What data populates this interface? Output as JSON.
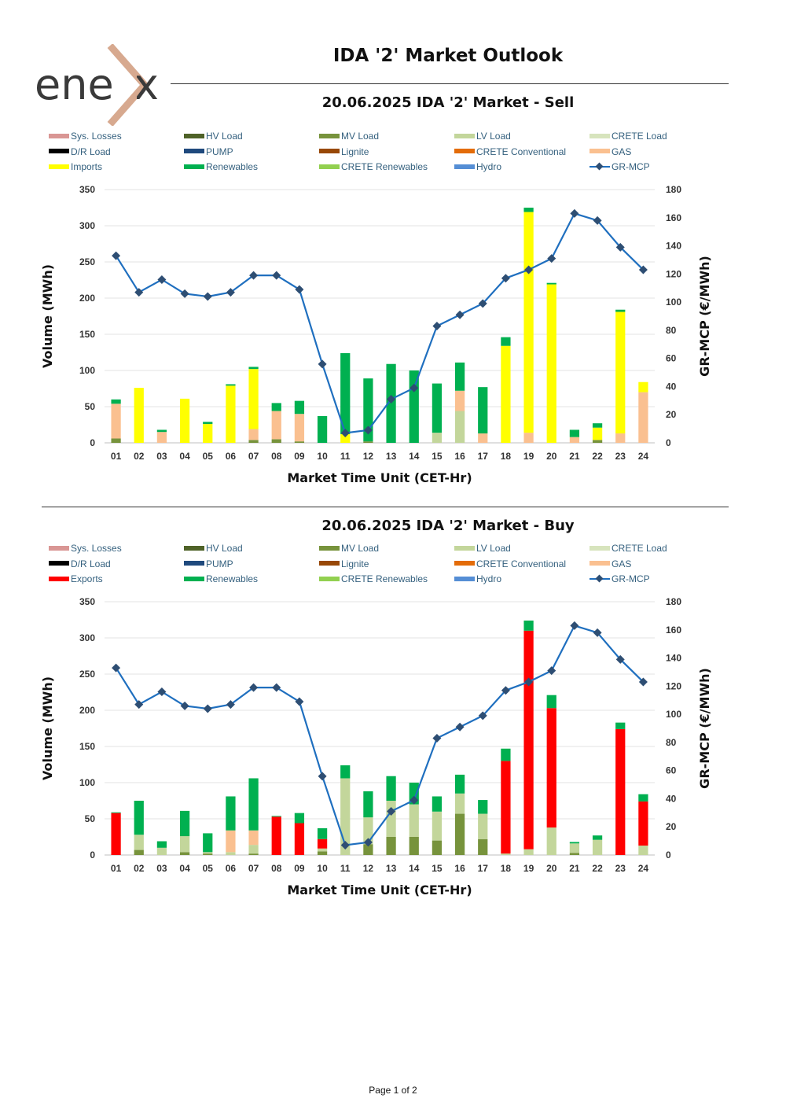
{
  "logo": {
    "text": "ene",
    "accent_color": "#d7a98f",
    "text_color": "#3a3a3a"
  },
  "page_title": "IDA '2' Market Outlook",
  "footer": "Page 1 of 2",
  "colors": {
    "Sys. Losses": "#d99694",
    "HV Load": "#4f6228",
    "MV Load": "#77933c",
    "LV Load": "#c3d69b",
    "CRETE Load": "#d7e4bd",
    "D/R Load": "#000000",
    "PUMP": "#1f497d",
    "Lignite": "#984807",
    "CRETE Conventional": "#e36c09",
    "GAS": "#fac090",
    "Imports": "#ffff00",
    "Exports": "#ff0000",
    "Renewables": "#00b050",
    "CRETE Renewables": "#92d050",
    "Hydro": "#558ed5",
    "GR-MCP": "#1f6fbf"
  },
  "chart_data": [
    {
      "type": "bar",
      "title": "20.06.2025  IDA '2' Market - Sell",
      "xlabel": "Market Time Unit (CET-Hr)",
      "ylabel": "Volume (MWh)",
      "y2label": "GR-MCP (€/MWh)",
      "ylim": [
        0,
        350
      ],
      "y2lim": [
        0,
        180
      ],
      "yticks": [
        0,
        50,
        100,
        150,
        200,
        250,
        300,
        350
      ],
      "y2ticks": [
        0,
        20,
        40,
        60,
        80,
        100,
        120,
        140,
        160,
        180
      ],
      "categories": [
        "01",
        "02",
        "03",
        "04",
        "05",
        "06",
        "07",
        "08",
        "09",
        "10",
        "11",
        "12",
        "13",
        "14",
        "15",
        "16",
        "17",
        "18",
        "19",
        "20",
        "21",
        "22",
        "23",
        "24"
      ],
      "legend": [
        "Sys. Losses",
        "HV Load",
        "MV Load",
        "LV Load",
        "CRETE Load",
        "D/R Load",
        "PUMP",
        "Lignite",
        "CRETE Conventional",
        "GAS",
        "Imports",
        "Renewables",
        "CRETE Renewables",
        "Hydro",
        "GR-MCP"
      ],
      "series": [
        {
          "name": "MV Load",
          "values": [
            6,
            0,
            0,
            0,
            0,
            0,
            4,
            5,
            2,
            0,
            0,
            2,
            0,
            0,
            0,
            0,
            0,
            0,
            0,
            0,
            0,
            4,
            0,
            0
          ]
        },
        {
          "name": "LV Load",
          "values": [
            0,
            0,
            0,
            0,
            0,
            0,
            0,
            0,
            0,
            0,
            0,
            0,
            0,
            0,
            14,
            44,
            0,
            0,
            0,
            0,
            0,
            0,
            0,
            0
          ]
        },
        {
          "name": "GAS",
          "values": [
            48,
            0,
            15,
            0,
            0,
            0,
            15,
            39,
            38,
            0,
            0,
            0,
            0,
            0,
            0,
            28,
            13,
            0,
            14,
            0,
            8,
            0,
            13,
            70
          ]
        },
        {
          "name": "Imports",
          "values": [
            0,
            76,
            0,
            61,
            26,
            79,
            83,
            0,
            0,
            0,
            12,
            0,
            0,
            0,
            0,
            0,
            0,
            134,
            305,
            219,
            0,
            17,
            168,
            14
          ]
        },
        {
          "name": "Renewables",
          "values": [
            6,
            0,
            3,
            0,
            3,
            2,
            3,
            11,
            18,
            37,
            112,
            87,
            109,
            100,
            68,
            39,
            64,
            12,
            6,
            2,
            10,
            6,
            3,
            0
          ]
        }
      ],
      "line": {
        "name": "GR-MCP",
        "values": [
          133,
          107,
          116,
          106,
          104,
          107,
          119,
          119,
          109,
          56,
          7,
          9,
          31,
          39,
          83,
          91,
          99,
          117,
          123,
          131,
          163,
          158,
          139,
          123
        ]
      }
    },
    {
      "type": "bar",
      "title": "20.06.2025  IDA '2' Market - Buy",
      "xlabel": "Market Time Unit (CET-Hr)",
      "ylabel": "Volume (MWh)",
      "y2label": "GR-MCP (€/MWh)",
      "ylim": [
        0,
        350
      ],
      "y2lim": [
        0,
        180
      ],
      "yticks": [
        0,
        50,
        100,
        150,
        200,
        250,
        300,
        350
      ],
      "y2ticks": [
        0,
        20,
        40,
        60,
        80,
        100,
        120,
        140,
        160,
        180
      ],
      "categories": [
        "01",
        "02",
        "03",
        "04",
        "05",
        "06",
        "07",
        "08",
        "09",
        "10",
        "11",
        "12",
        "13",
        "14",
        "15",
        "16",
        "17",
        "18",
        "19",
        "20",
        "21",
        "22",
        "23",
        "24"
      ],
      "legend": [
        "Sys. Losses",
        "HV Load",
        "MV Load",
        "LV Load",
        "CRETE Load",
        "D/R Load",
        "PUMP",
        "Lignite",
        "CRETE Conventional",
        "GAS",
        "Exports",
        "Renewables",
        "CRETE Renewables",
        "Hydro",
        "GR-MCP"
      ],
      "series": [
        {
          "name": "MV Load",
          "values": [
            0,
            7,
            0,
            4,
            2,
            0,
            2,
            0,
            0,
            5,
            0,
            15,
            25,
            25,
            20,
            57,
            22,
            0,
            0,
            0,
            3,
            0,
            0,
            0
          ]
        },
        {
          "name": "LV Load",
          "values": [
            0,
            21,
            10,
            22,
            2,
            4,
            12,
            0,
            0,
            4,
            106,
            37,
            50,
            45,
            40,
            28,
            35,
            2,
            8,
            38,
            13,
            21,
            0,
            13
          ]
        },
        {
          "name": "GAS",
          "values": [
            0,
            0,
            0,
            0,
            0,
            30,
            20,
            0,
            0,
            0,
            0,
            0,
            0,
            0,
            0,
            0,
            0,
            0,
            0,
            0,
            0,
            0,
            0,
            0
          ]
        },
        {
          "name": "Exports",
          "values": [
            58,
            0,
            0,
            0,
            0,
            0,
            0,
            53,
            44,
            13,
            0,
            0,
            0,
            0,
            0,
            0,
            0,
            128,
            302,
            165,
            0,
            0,
            174,
            61
          ]
        },
        {
          "name": "Renewables",
          "values": [
            1,
            47,
            9,
            35,
            26,
            47,
            72,
            1,
            14,
            15,
            18,
            36,
            34,
            30,
            21,
            26,
            19,
            17,
            14,
            18,
            2,
            6,
            9,
            10
          ]
        }
      ],
      "line": {
        "name": "GR-MCP",
        "values": [
          133,
          107,
          116,
          106,
          104,
          107,
          119,
          119,
          109,
          56,
          7,
          9,
          31,
          39,
          83,
          91,
          99,
          117,
          123,
          131,
          163,
          158,
          139,
          123
        ]
      }
    }
  ]
}
